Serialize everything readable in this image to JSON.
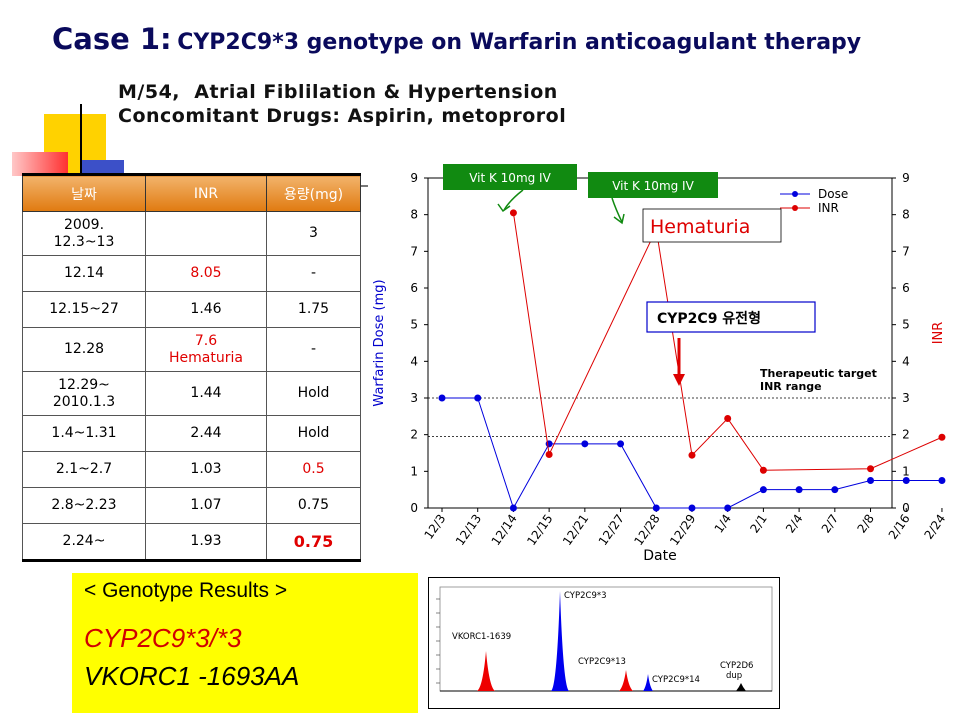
{
  "header": {
    "case_label": "Case 1:",
    "case_text": "CYP2C9*3 genotype on Warfarin anticoagulant therapy",
    "patient": "M/54,  Atrial Fiblilation & Hypertension",
    "drugs": "Concomitant Drugs: Aspirin, metoprorol"
  },
  "table": {
    "headers": [
      "날짜",
      "INR",
      "용량(mg)"
    ],
    "rows": [
      {
        "date": "2009.\n12.3~13",
        "inr": "",
        "dose": "3"
      },
      {
        "date": "12.14",
        "inr": "8.05",
        "dose": "-"
      },
      {
        "date": "12.15~27",
        "inr": "1.46",
        "dose": "1.75"
      },
      {
        "date": "12.28",
        "inr": "7.6\nHematuria",
        "dose": "-"
      },
      {
        "date": "12.29~\n2010.1.3",
        "inr": "1.44",
        "dose": "Hold"
      },
      {
        "date": "1.4~1.31",
        "inr": "2.44",
        "dose": "Hold"
      },
      {
        "date": "2.1~2.7",
        "inr": "1.03",
        "dose": "0.5"
      },
      {
        "date": "2.8~2.23",
        "inr": "1.07",
        "dose": "0.75"
      },
      {
        "date": "2.24~",
        "inr": "1.93",
        "dose": "0.75"
      }
    ]
  },
  "genotype": {
    "heading": "< Genotype Results >",
    "line1": "CYP2C9*3/*3",
    "line2": "VKORC1 -1693AA"
  },
  "chart_data": {
    "type": "line",
    "xlabel": "Date",
    "ylabel_left": "Warfarin Dose (mg)",
    "ylabel_right": "INR",
    "ylim": [
      0,
      9
    ],
    "categories": [
      "12/3",
      "12/13",
      "12/14",
      "12/15",
      "12/21",
      "12/27",
      "12/28",
      "12/29",
      "1/4",
      "2/1",
      "2/4",
      "2/7",
      "2/8",
      "2/16",
      "2/24"
    ],
    "series": [
      {
        "name": "Dose",
        "color": "#0000dd",
        "values": [
          3,
          3,
          0,
          1.75,
          1.75,
          1.75,
          0,
          0,
          0,
          0.5,
          0.5,
          0.5,
          0.75,
          0.75,
          0.75
        ]
      },
      {
        "name": "INR",
        "color": "#dd0000",
        "values": [
          null,
          null,
          8.05,
          1.46,
          null,
          null,
          7.6,
          1.44,
          2.44,
          1.03,
          null,
          null,
          1.07,
          null,
          1.93
        ]
      }
    ],
    "reference_lines": [
      {
        "axis": "left",
        "value": 3,
        "style": "dotted"
      },
      {
        "axis": "left",
        "value": 1.95,
        "style": "dotted"
      }
    ],
    "annotations": {
      "vitk1": "Vit K 10mg IV",
      "vitk2": "Vit K 10mg IV",
      "hematuria": "Hematuria",
      "genotype_box": "CYP2C9 유전형",
      "target_line1": "Therapeutic target",
      "target_line2": "INR range"
    },
    "legend_position": "top-right"
  },
  "electropherogram": {
    "peaks": [
      {
        "label": "VKORC1-1639",
        "color": "#ee0000"
      },
      {
        "label": "CYP2C9*3",
        "color": "#0000ee"
      },
      {
        "label": "CYP2C9*13",
        "color": "#ee0000"
      },
      {
        "label": "CYP2C9*14",
        "color": "#0000ee"
      },
      {
        "label": "CYP2D6\ndup",
        "color": "#000000"
      }
    ]
  }
}
